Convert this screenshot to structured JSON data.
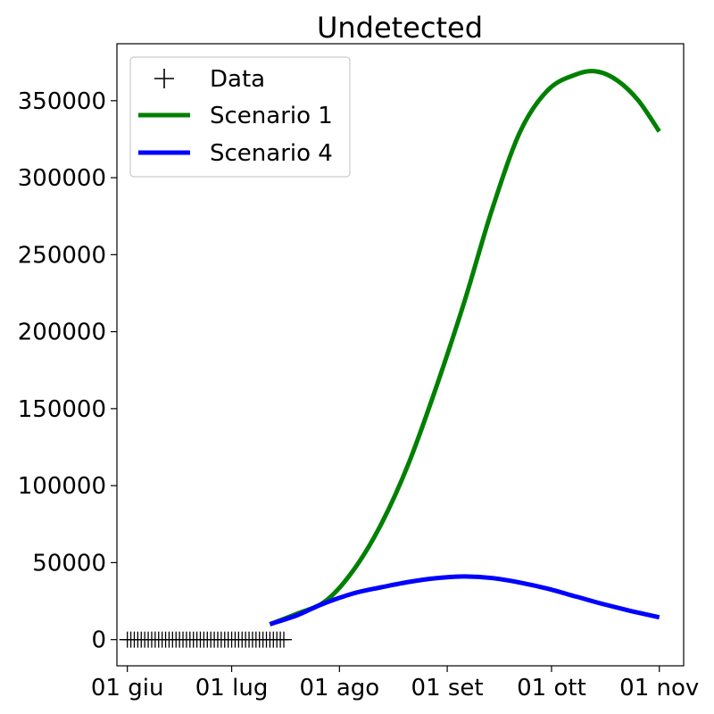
{
  "chart_data": {
    "type": "line",
    "title": "Undetected",
    "xlabel": "",
    "ylabel": "",
    "x_type": "date",
    "xlim": [
      "2020-05-29",
      "2020-11-08"
    ],
    "ylim": [
      -17000,
      387000
    ],
    "grid": false,
    "legend_position": "top-left",
    "x_ticks": [
      {
        "date": "2020-06-01",
        "label": "01 giu"
      },
      {
        "date": "2020-07-01",
        "label": "01 lug"
      },
      {
        "date": "2020-08-01",
        "label": "01 ago"
      },
      {
        "date": "2020-09-01",
        "label": "01 set"
      },
      {
        "date": "2020-10-01",
        "label": "01 ott"
      },
      {
        "date": "2020-11-01",
        "label": "01 nov"
      }
    ],
    "y_ticks": [
      {
        "value": 0,
        "label": "0"
      },
      {
        "value": 50000,
        "label": "50000"
      },
      {
        "value": 100000,
        "label": "100000"
      },
      {
        "value": 150000,
        "label": "150000"
      },
      {
        "value": 200000,
        "label": "200000"
      },
      {
        "value": 250000,
        "label": "250000"
      },
      {
        "value": 300000,
        "label": "300000"
      },
      {
        "value": 350000,
        "label": "350000"
      }
    ],
    "series": [
      {
        "name": "Data",
        "kind": "scatter",
        "marker": "+",
        "color": "#000000",
        "x": [
          "2020-06-01",
          "2020-06-02",
          "2020-06-03",
          "2020-06-04",
          "2020-06-05",
          "2020-06-06",
          "2020-06-07",
          "2020-06-08",
          "2020-06-09",
          "2020-06-10",
          "2020-06-11",
          "2020-06-12",
          "2020-06-13",
          "2020-06-14",
          "2020-06-15",
          "2020-06-16",
          "2020-06-17",
          "2020-06-18",
          "2020-06-19",
          "2020-06-20",
          "2020-06-21",
          "2020-06-22",
          "2020-06-23",
          "2020-06-24",
          "2020-06-25",
          "2020-06-26",
          "2020-06-27",
          "2020-06-28",
          "2020-06-29",
          "2020-06-30",
          "2020-07-01",
          "2020-07-02",
          "2020-07-03",
          "2020-07-04",
          "2020-07-05",
          "2020-07-06",
          "2020-07-07",
          "2020-07-08",
          "2020-07-09",
          "2020-07-10",
          "2020-07-11",
          "2020-07-12",
          "2020-07-13",
          "2020-07-14",
          "2020-07-15",
          "2020-07-16"
        ],
        "y": [
          0,
          0,
          0,
          0,
          0,
          0,
          0,
          0,
          0,
          0,
          0,
          0,
          0,
          0,
          0,
          0,
          0,
          0,
          0,
          0,
          0,
          0,
          0,
          0,
          0,
          0,
          0,
          0,
          0,
          0,
          0,
          0,
          0,
          0,
          0,
          0,
          0,
          0,
          0,
          0,
          0,
          0,
          0,
          0,
          0,
          0
        ]
      },
      {
        "name": "Scenario 1",
        "kind": "line",
        "color": "#008000",
        "x": [
          "2020-07-12",
          "2020-07-20",
          "2020-07-28",
          "2020-08-05",
          "2020-08-13",
          "2020-08-21",
          "2020-08-29",
          "2020-09-06",
          "2020-09-14",
          "2020-09-22",
          "2020-09-30",
          "2020-10-08",
          "2020-10-14",
          "2020-10-20",
          "2020-10-26",
          "2020-11-01"
        ],
        "y": [
          10000,
          17000,
          25000,
          45000,
          75000,
          115000,
          165000,
          220000,
          280000,
          330000,
          357000,
          367000,
          369000,
          363000,
          350000,
          330000
        ]
      },
      {
        "name": "Scenario 4",
        "kind": "line",
        "color": "#0000ff",
        "x": [
          "2020-07-12",
          "2020-07-20",
          "2020-07-27",
          "2020-08-05",
          "2020-08-13",
          "2020-08-21",
          "2020-08-29",
          "2020-09-06",
          "2020-09-14",
          "2020-09-22",
          "2020-09-30",
          "2020-10-08",
          "2020-10-16",
          "2020-10-24",
          "2020-11-01"
        ],
        "y": [
          10000,
          16000,
          23000,
          30000,
          34000,
          37500,
          40000,
          41000,
          40000,
          37000,
          33000,
          28000,
          23000,
          18500,
          14500
        ]
      }
    ]
  }
}
